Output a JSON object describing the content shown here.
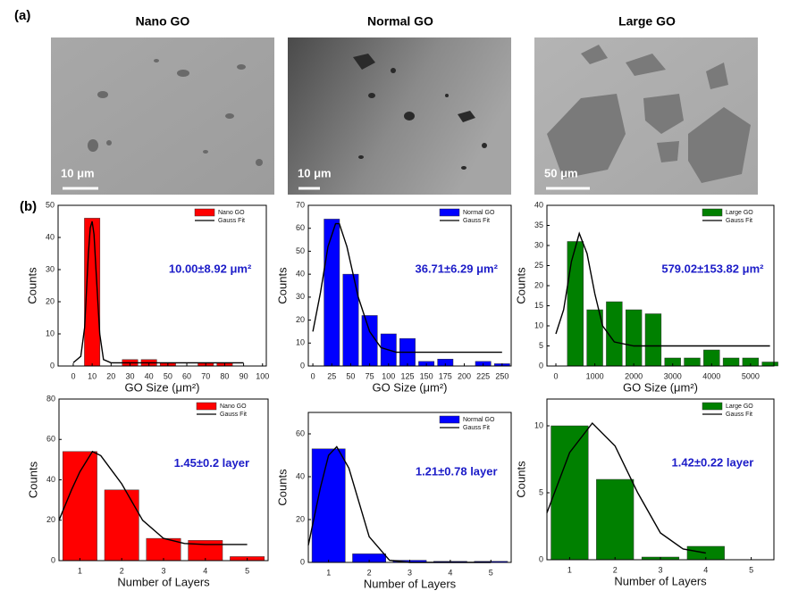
{
  "panel_labels": [
    "(a)",
    "(b)"
  ],
  "images": [
    {
      "title": "Nano GO",
      "scale_bar": "10 μm"
    },
    {
      "title": "Normal GO",
      "scale_bar": "10 μm"
    },
    {
      "title": "Large GO",
      "scale_bar": "50 μm"
    }
  ],
  "chart_data": [
    {
      "type": "bar",
      "xlabel": "GO Size (μm²)",
      "ylabel": "Counts",
      "annotation": "10.00±8.92 μm²",
      "annotation_color": "#1c1cc8",
      "xlim": [
        -8,
        102
      ],
      "xticks": [
        0,
        10,
        20,
        30,
        40,
        50,
        60,
        70,
        80,
        90,
        100
      ],
      "ylim": [
        0,
        50
      ],
      "yticks": [
        0,
        10,
        20,
        30,
        40,
        50
      ],
      "legend": "upper right",
      "series": [
        {
          "name": "Nano GO",
          "color": "#ff0000",
          "x": [
            10,
            30,
            40,
            50,
            70,
            80
          ],
          "values": [
            46,
            2,
            2,
            1,
            1,
            1
          ]
        }
      ],
      "fit": {
        "name": "Gauss Fit",
        "color": "#000000",
        "x": [
          0,
          4,
          6,
          8,
          9,
          10,
          11,
          12,
          14,
          16,
          20,
          90
        ],
        "values": [
          1,
          3,
          12,
          35,
          43,
          45,
          41,
          30,
          10,
          2,
          1,
          1
        ]
      }
    },
    {
      "type": "bar",
      "xlabel": "GO Size (μm²)",
      "ylabel": "Counts",
      "annotation": "36.71±6.29 μm²",
      "annotation_color": "#1c1cc8",
      "xlim": [
        -6,
        262
      ],
      "xticks": [
        0,
        25,
        50,
        75,
        100,
        125,
        150,
        175,
        200,
        225,
        250
      ],
      "ylim": [
        0,
        70
      ],
      "yticks": [
        0,
        10,
        20,
        30,
        40,
        50,
        60,
        70
      ],
      "legend": "upper right",
      "series": [
        {
          "name": "Normal GO",
          "color": "#0000ff",
          "x": [
            25,
            50,
            75,
            100,
            125,
            150,
            175,
            225,
            250
          ],
          "values": [
            64,
            40,
            22,
            14,
            12,
            2,
            3,
            2,
            1
          ]
        }
      ],
      "fit": {
        "name": "Gauss Fit",
        "color": "#000000",
        "x": [
          0,
          10,
          20,
          30,
          35,
          45,
          60,
          75,
          90,
          110,
          250
        ],
        "values": [
          15,
          32,
          52,
          62,
          62,
          52,
          30,
          15,
          8,
          6,
          6
        ]
      }
    },
    {
      "type": "bar",
      "xlabel": "GO Size (μm²)",
      "ylabel": "Counts",
      "annotation": "579.02±153.82 μm²",
      "annotation_color": "#1c1cc8",
      "xlim": [
        -230,
        5600
      ],
      "xticks": [
        0,
        1000,
        2000,
        3000,
        4000,
        5000
      ],
      "ylim": [
        0,
        40
      ],
      "yticks": [
        0,
        5,
        10,
        15,
        20,
        25,
        30,
        35,
        40
      ],
      "legend": "upper right",
      "series": [
        {
          "name": "Large GO",
          "color": "#008000",
          "x": [
            500,
            1000,
            1500,
            2000,
            2500,
            3000,
            3500,
            4000,
            4500,
            5000,
            5500
          ],
          "values": [
            31,
            14,
            16,
            14,
            13,
            2,
            2,
            4,
            2,
            2,
            1
          ]
        }
      ],
      "fit": {
        "name": "Gauss Fit",
        "color": "#000000",
        "x": [
          0,
          200,
          400,
          600,
          800,
          1000,
          1200,
          1500,
          2000,
          5500
        ],
        "values": [
          8,
          14,
          26,
          33,
          28,
          18,
          10,
          6,
          5,
          5
        ]
      }
    },
    {
      "type": "bar",
      "xlabel": "Number of Layers",
      "ylabel": "Counts",
      "annotation": "1.45±0.2 layer",
      "annotation_color": "#1c1cc8",
      "xlim": [
        0.5,
        5.5
      ],
      "xticks": [
        1,
        2,
        3,
        4,
        5
      ],
      "ylim": [
        0,
        80
      ],
      "yticks": [
        0,
        20,
        40,
        60,
        80
      ],
      "legend": "upper right",
      "series": [
        {
          "name": "Nano GO",
          "color": "#ff0000",
          "x": [
            1,
            2,
            3,
            4,
            5
          ],
          "values": [
            54,
            35,
            11,
            10,
            2
          ]
        }
      ],
      "fit": {
        "name": "Gauss Fit",
        "color": "#000000",
        "x": [
          0.5,
          0.8,
          1,
          1.3,
          1.5,
          2,
          2.5,
          3,
          3.5,
          4,
          5
        ],
        "values": [
          20,
          35,
          44,
          54,
          52,
          38,
          20,
          11,
          8.5,
          8,
          8
        ]
      }
    },
    {
      "type": "bar",
      "xlabel": "Number of Layers",
      "ylabel": "Counts",
      "annotation": "1.21±0.78 layer",
      "annotation_color": "#1c1cc8",
      "xlim": [
        0.5,
        5.5
      ],
      "xticks": [
        1,
        2,
        3,
        4,
        5
      ],
      "ylim": [
        0,
        70
      ],
      "yticks": [
        0,
        20,
        40,
        60
      ],
      "legend": "upper right",
      "series": [
        {
          "name": "Normal GO",
          "color": "#0000ff",
          "x": [
            1,
            2,
            3,
            4,
            5
          ],
          "values": [
            53,
            4,
            1,
            0.5,
            0.5
          ]
        }
      ],
      "fit": {
        "name": "Gauss Fit",
        "color": "#000000",
        "x": [
          0.5,
          0.8,
          1,
          1.2,
          1.5,
          2,
          2.5,
          3,
          5
        ],
        "values": [
          8,
          35,
          50,
          54,
          44,
          12,
          1,
          0,
          0
        ]
      }
    },
    {
      "type": "bar",
      "xlabel": "Number of Layers",
      "ylabel": "Counts",
      "annotation": "1.42±0.22 layer",
      "annotation_color": "#1c1cc8",
      "xlim": [
        0.5,
        5.5
      ],
      "xticks": [
        1,
        2,
        3,
        4,
        5
      ],
      "ylim": [
        0,
        12
      ],
      "yticks": [
        0,
        5,
        10
      ],
      "legend": "upper right",
      "series": [
        {
          "name": "Large GO",
          "color": "#008000",
          "x": [
            1,
            2,
            3,
            4
          ],
          "values": [
            10,
            6,
            0.2,
            1
          ]
        }
      ],
      "fit": {
        "name": "Gauss Fit",
        "color": "#000000",
        "x": [
          0.5,
          1,
          1.5,
          2,
          2.5,
          3,
          3.5,
          4
        ],
        "values": [
          3.5,
          8,
          10.2,
          8.5,
          5,
          2,
          0.8,
          0.5
        ]
      }
    }
  ]
}
